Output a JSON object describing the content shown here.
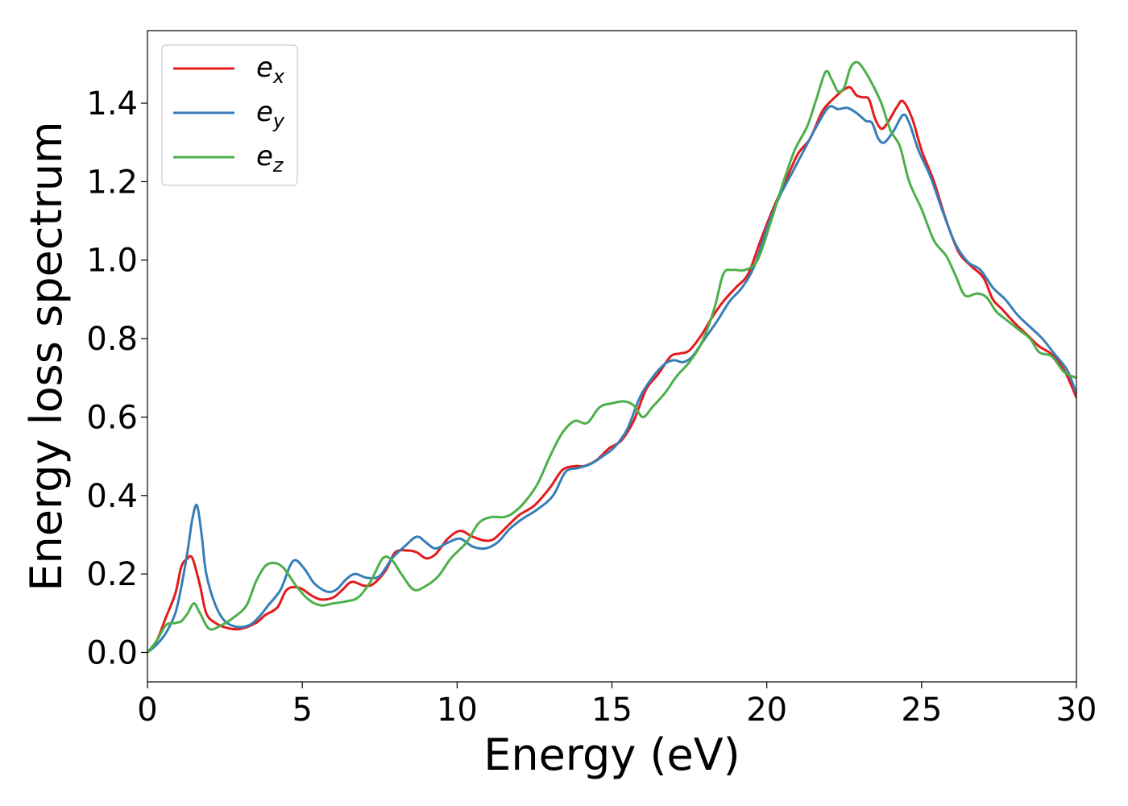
{
  "chart_data": {
    "type": "line",
    "xlabel": "Energy (eV)",
    "ylabel": "Energy loss spectrum",
    "xlim": [
      0,
      30
    ],
    "ylim": [
      -0.075,
      1.585
    ],
    "xticks": [
      0,
      5,
      10,
      15,
      20,
      25,
      30
    ],
    "xtick_labels": [
      "0",
      "5",
      "10",
      "15",
      "20",
      "25",
      "30"
    ],
    "yticks": [
      0.0,
      0.2,
      0.4,
      0.6,
      0.8,
      1.0,
      1.2,
      1.4
    ],
    "ytick_labels": [
      "0.0",
      "0.2",
      "0.4",
      "0.6",
      "0.8",
      "1.0",
      "1.2",
      "1.4"
    ],
    "grid": false,
    "legend": {
      "position": "top-left",
      "items": [
        {
          "base": "e",
          "sub": "x"
        },
        {
          "base": "e",
          "sub": "y"
        },
        {
          "base": "e",
          "sub": "z"
        }
      ]
    },
    "series": [
      {
        "color": "#e41a1c",
        "points": [
          [
            0,
            0.0
          ],
          [
            0.3,
            0.03
          ],
          [
            0.6,
            0.09
          ],
          [
            0.9,
            0.15
          ],
          [
            1.1,
            0.22
          ],
          [
            1.3,
            0.24
          ],
          [
            1.4,
            0.245
          ],
          [
            1.5,
            0.23
          ],
          [
            1.7,
            0.17
          ],
          [
            1.9,
            0.1
          ],
          [
            2.2,
            0.075
          ],
          [
            2.6,
            0.062
          ],
          [
            3.0,
            0.06
          ],
          [
            3.5,
            0.075
          ],
          [
            3.8,
            0.095
          ],
          [
            4.2,
            0.115
          ],
          [
            4.5,
            0.16
          ],
          [
            4.9,
            0.165
          ],
          [
            5.3,
            0.145
          ],
          [
            5.6,
            0.135
          ],
          [
            6.0,
            0.14
          ],
          [
            6.3,
            0.16
          ],
          [
            6.6,
            0.18
          ],
          [
            7.0,
            0.17
          ],
          [
            7.3,
            0.175
          ],
          [
            7.7,
            0.21
          ],
          [
            8.0,
            0.255
          ],
          [
            8.4,
            0.26
          ],
          [
            8.7,
            0.255
          ],
          [
            9.0,
            0.24
          ],
          [
            9.3,
            0.25
          ],
          [
            9.7,
            0.29
          ],
          [
            10.1,
            0.31
          ],
          [
            10.5,
            0.295
          ],
          [
            10.9,
            0.285
          ],
          [
            11.2,
            0.29
          ],
          [
            11.6,
            0.32
          ],
          [
            12.0,
            0.35
          ],
          [
            12.5,
            0.375
          ],
          [
            13.0,
            0.42
          ],
          [
            13.4,
            0.465
          ],
          [
            13.8,
            0.475
          ],
          [
            14.1,
            0.475
          ],
          [
            14.5,
            0.49
          ],
          [
            14.9,
            0.52
          ],
          [
            15.3,
            0.54
          ],
          [
            15.7,
            0.59
          ],
          [
            16.1,
            0.67
          ],
          [
            16.5,
            0.71
          ],
          [
            16.9,
            0.755
          ],
          [
            17.2,
            0.762
          ],
          [
            17.5,
            0.77
          ],
          [
            17.9,
            0.81
          ],
          [
            18.2,
            0.85
          ],
          [
            18.6,
            0.895
          ],
          [
            19.0,
            0.93
          ],
          [
            19.4,
            0.965
          ],
          [
            19.8,
            1.05
          ],
          [
            20.2,
            1.13
          ],
          [
            20.6,
            1.2
          ],
          [
            21.0,
            1.27
          ],
          [
            21.4,
            1.31
          ],
          [
            21.8,
            1.38
          ],
          [
            22.2,
            1.415
          ],
          [
            22.5,
            1.435
          ],
          [
            22.7,
            1.44
          ],
          [
            22.9,
            1.42
          ],
          [
            23.1,
            1.415
          ],
          [
            23.3,
            1.41
          ],
          [
            23.5,
            1.36
          ],
          [
            23.7,
            1.335
          ],
          [
            23.9,
            1.35
          ],
          [
            24.2,
            1.39
          ],
          [
            24.4,
            1.405
          ],
          [
            24.7,
            1.36
          ],
          [
            25.0,
            1.28
          ],
          [
            25.4,
            1.2
          ],
          [
            25.8,
            1.1
          ],
          [
            26.2,
            1.02
          ],
          [
            26.6,
            0.985
          ],
          [
            27.0,
            0.955
          ],
          [
            27.3,
            0.9
          ],
          [
            27.6,
            0.875
          ],
          [
            28.0,
            0.84
          ],
          [
            28.4,
            0.81
          ],
          [
            28.8,
            0.78
          ],
          [
            29.2,
            0.76
          ],
          [
            29.6,
            0.72
          ],
          [
            30.0,
            0.65
          ]
        ]
      },
      {
        "color": "#377eb8",
        "points": [
          [
            0,
            0.0
          ],
          [
            0.3,
            0.02
          ],
          [
            0.6,
            0.05
          ],
          [
            0.9,
            0.1
          ],
          [
            1.1,
            0.17
          ],
          [
            1.3,
            0.26
          ],
          [
            1.45,
            0.34
          ],
          [
            1.6,
            0.375
          ],
          [
            1.75,
            0.3
          ],
          [
            1.9,
            0.2
          ],
          [
            2.2,
            0.12
          ],
          [
            2.5,
            0.08
          ],
          [
            2.9,
            0.065
          ],
          [
            3.3,
            0.07
          ],
          [
            3.6,
            0.09
          ],
          [
            3.9,
            0.12
          ],
          [
            4.3,
            0.16
          ],
          [
            4.6,
            0.22
          ],
          [
            4.8,
            0.235
          ],
          [
            5.1,
            0.21
          ],
          [
            5.4,
            0.175
          ],
          [
            5.8,
            0.155
          ],
          [
            6.1,
            0.16
          ],
          [
            6.4,
            0.185
          ],
          [
            6.7,
            0.2
          ],
          [
            7.1,
            0.19
          ],
          [
            7.5,
            0.195
          ],
          [
            7.9,
            0.24
          ],
          [
            8.3,
            0.27
          ],
          [
            8.7,
            0.295
          ],
          [
            9.0,
            0.28
          ],
          [
            9.3,
            0.265
          ],
          [
            9.7,
            0.28
          ],
          [
            10.1,
            0.29
          ],
          [
            10.5,
            0.27
          ],
          [
            10.9,
            0.265
          ],
          [
            11.3,
            0.28
          ],
          [
            11.7,
            0.315
          ],
          [
            12.1,
            0.34
          ],
          [
            12.6,
            0.365
          ],
          [
            13.1,
            0.4
          ],
          [
            13.5,
            0.46
          ],
          [
            13.9,
            0.47
          ],
          [
            14.3,
            0.48
          ],
          [
            14.7,
            0.5
          ],
          [
            15.1,
            0.525
          ],
          [
            15.5,
            0.57
          ],
          [
            15.9,
            0.65
          ],
          [
            16.3,
            0.7
          ],
          [
            16.7,
            0.735
          ],
          [
            17.0,
            0.745
          ],
          [
            17.3,
            0.74
          ],
          [
            17.6,
            0.755
          ],
          [
            18.0,
            0.8
          ],
          [
            18.4,
            0.845
          ],
          [
            18.8,
            0.895
          ],
          [
            19.2,
            0.93
          ],
          [
            19.6,
            0.985
          ],
          [
            20.0,
            1.08
          ],
          [
            20.4,
            1.16
          ],
          [
            20.8,
            1.22
          ],
          [
            21.2,
            1.28
          ],
          [
            21.6,
            1.34
          ],
          [
            22.0,
            1.39
          ],
          [
            22.3,
            1.385
          ],
          [
            22.6,
            1.388
          ],
          [
            22.9,
            1.375
          ],
          [
            23.2,
            1.355
          ],
          [
            23.4,
            1.35
          ],
          [
            23.6,
            1.31
          ],
          [
            23.8,
            1.3
          ],
          [
            24.1,
            1.33
          ],
          [
            24.4,
            1.37
          ],
          [
            24.6,
            1.35
          ],
          [
            24.9,
            1.28
          ],
          [
            25.3,
            1.21
          ],
          [
            25.7,
            1.12
          ],
          [
            26.1,
            1.04
          ],
          [
            26.5,
            0.995
          ],
          [
            26.9,
            0.975
          ],
          [
            27.3,
            0.93
          ],
          [
            27.7,
            0.9
          ],
          [
            28.1,
            0.86
          ],
          [
            28.5,
            0.83
          ],
          [
            28.9,
            0.8
          ],
          [
            29.3,
            0.76
          ],
          [
            29.7,
            0.72
          ],
          [
            30.0,
            0.66
          ]
        ]
      },
      {
        "color": "#4daf4a",
        "points": [
          [
            0,
            0.0
          ],
          [
            0.3,
            0.03
          ],
          [
            0.6,
            0.07
          ],
          [
            0.9,
            0.075
          ],
          [
            1.1,
            0.08
          ],
          [
            1.3,
            0.1
          ],
          [
            1.5,
            0.125
          ],
          [
            1.7,
            0.1
          ],
          [
            2.0,
            0.06
          ],
          [
            2.4,
            0.07
          ],
          [
            2.8,
            0.09
          ],
          [
            3.2,
            0.12
          ],
          [
            3.5,
            0.18
          ],
          [
            3.8,
            0.22
          ],
          [
            4.1,
            0.228
          ],
          [
            4.4,
            0.215
          ],
          [
            4.8,
            0.17
          ],
          [
            5.2,
            0.135
          ],
          [
            5.6,
            0.12
          ],
          [
            6.0,
            0.125
          ],
          [
            6.4,
            0.13
          ],
          [
            6.8,
            0.14
          ],
          [
            7.2,
            0.18
          ],
          [
            7.6,
            0.24
          ],
          [
            7.9,
            0.235
          ],
          [
            8.2,
            0.2
          ],
          [
            8.6,
            0.16
          ],
          [
            9.0,
            0.17
          ],
          [
            9.4,
            0.195
          ],
          [
            9.8,
            0.24
          ],
          [
            10.3,
            0.28
          ],
          [
            10.7,
            0.33
          ],
          [
            11.1,
            0.345
          ],
          [
            11.5,
            0.345
          ],
          [
            11.8,
            0.355
          ],
          [
            12.2,
            0.385
          ],
          [
            12.6,
            0.43
          ],
          [
            13.0,
            0.5
          ],
          [
            13.4,
            0.56
          ],
          [
            13.8,
            0.59
          ],
          [
            14.2,
            0.585
          ],
          [
            14.6,
            0.625
          ],
          [
            15.0,
            0.635
          ],
          [
            15.4,
            0.64
          ],
          [
            15.7,
            0.63
          ],
          [
            16.0,
            0.6
          ],
          [
            16.3,
            0.625
          ],
          [
            16.7,
            0.66
          ],
          [
            17.1,
            0.705
          ],
          [
            17.5,
            0.74
          ],
          [
            17.9,
            0.79
          ],
          [
            18.3,
            0.875
          ],
          [
            18.6,
            0.965
          ],
          [
            18.9,
            0.975
          ],
          [
            19.3,
            0.975
          ],
          [
            19.7,
            1.0
          ],
          [
            20.1,
            1.09
          ],
          [
            20.5,
            1.19
          ],
          [
            20.9,
            1.28
          ],
          [
            21.3,
            1.34
          ],
          [
            21.6,
            1.41
          ],
          [
            21.9,
            1.48
          ],
          [
            22.1,
            1.46
          ],
          [
            22.3,
            1.43
          ],
          [
            22.5,
            1.44
          ],
          [
            22.7,
            1.49
          ],
          [
            22.9,
            1.505
          ],
          [
            23.1,
            1.49
          ],
          [
            23.4,
            1.45
          ],
          [
            23.7,
            1.4
          ],
          [
            24.0,
            1.33
          ],
          [
            24.3,
            1.29
          ],
          [
            24.6,
            1.2
          ],
          [
            25.0,
            1.13
          ],
          [
            25.4,
            1.05
          ],
          [
            25.8,
            1.01
          ],
          [
            26.1,
            0.96
          ],
          [
            26.4,
            0.91
          ],
          [
            26.8,
            0.915
          ],
          [
            27.1,
            0.905
          ],
          [
            27.4,
            0.87
          ],
          [
            27.7,
            0.85
          ],
          [
            28.1,
            0.825
          ],
          [
            28.5,
            0.8
          ],
          [
            28.8,
            0.765
          ],
          [
            29.2,
            0.755
          ],
          [
            29.6,
            0.715
          ],
          [
            30.0,
            0.7
          ]
        ]
      }
    ]
  }
}
